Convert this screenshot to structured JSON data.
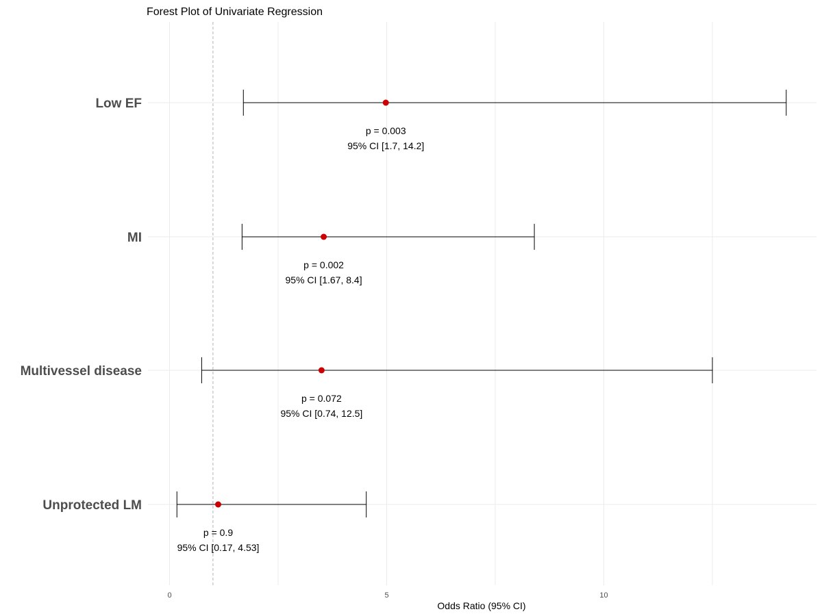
{
  "chart_data": {
    "type": "forest",
    "title": "Forest Plot of Univariate Regression",
    "xlabel": "Odds Ratio (95% CI)",
    "ylabel": "",
    "xlim": [
      0,
      14.9
    ],
    "x_ticks": [
      0,
      5,
      10
    ],
    "reference_line": 1,
    "grid": true,
    "rows": [
      {
        "label": "Low EF",
        "or": 4.98,
        "ci_low": 1.7,
        "ci_high": 14.2,
        "p_text": "p = 0.003",
        "ci_text": "95% CI [1.7, 14.2]"
      },
      {
        "label": "MI",
        "or": 3.55,
        "ci_low": 1.67,
        "ci_high": 8.4,
        "p_text": "p = 0.002",
        "ci_text": "95% CI [1.67, 8.4]"
      },
      {
        "label": "Multivessel disease",
        "or": 3.5,
        "ci_low": 0.74,
        "ci_high": 12.5,
        "p_text": "p = 0.072",
        "ci_text": "95% CI [0.74, 12.5]"
      },
      {
        "label": "Unprotected LM",
        "or": 1.12,
        "ci_low": 0.17,
        "ci_high": 4.53,
        "p_text": "p = 0.9",
        "ci_text": "95% CI [0.17, 4.53]"
      }
    ],
    "colors": {
      "point": "#cc0000",
      "whisker": "#000000",
      "grid": "#ebebeb",
      "reference": "#b3b3b3"
    }
  }
}
